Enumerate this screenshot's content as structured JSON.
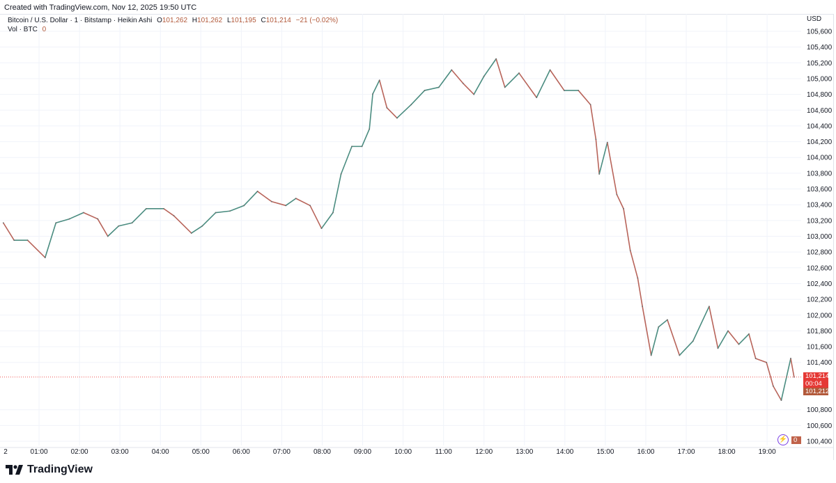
{
  "created": "Created with TradingView.com, Nov 12, 2025 19:50 UTC",
  "legend": {
    "symbol": "Bitcoin / U.S. Dollar · 1 · Bitstamp · Heikin Ashi",
    "open_label": "O",
    "open": "101,262",
    "high_label": "H",
    "high": "101,262",
    "low_label": "L",
    "low": "101,195",
    "close_label": "C",
    "close": "101,214",
    "change": "−21 (−0.02%)",
    "vol_label": "Vol · BTC",
    "vol": "0"
  },
  "price_tags": {
    "last": "101,214",
    "countdown": "00:04",
    "bid": "101,212",
    "volume": "0"
  },
  "logo": "TradingView",
  "colors": {
    "up": "#26a69a",
    "down": "#ef5350",
    "candle_up": "#4a8c80",
    "candle_down": "#b8645a",
    "last_tag": "#e53935",
    "bid_tag": "#b2593a",
    "grid": "#f0f3fa"
  },
  "chart_data": {
    "type": "line",
    "title": "",
    "currency": "USD",
    "y_ticks": [
      "105,600",
      "105,400",
      "105,200",
      "105,000",
      "104,800",
      "104,600",
      "104,400",
      "104,200",
      "104,000",
      "103,800",
      "103,600",
      "103,400",
      "103,200",
      "103,000",
      "102,800",
      "102,600",
      "102,400",
      "102,200",
      "102,000",
      "101,800",
      "101,600",
      "101,400",
      "100,800",
      "100,600",
      "100,400"
    ],
    "ylim": [
      100400,
      105600
    ],
    "x_ticks": [
      "2",
      "01:00",
      "02:00",
      "03:00",
      "04:00",
      "05:00",
      "06:00",
      "07:00",
      "08:00",
      "09:00",
      "10:00",
      "11:00",
      "12:00",
      "13:00",
      "14:00",
      "15:00",
      "16:00",
      "17:00",
      "18:00",
      "19:00"
    ],
    "grid": true,
    "series": [
      {
        "x": [
          "00:07",
          "00:23",
          "00:43",
          "01:09",
          "01:25",
          "01:45",
          "02:06",
          "02:27",
          "02:42",
          "02:58",
          "03:18",
          "03:39",
          "04:05",
          "04:20",
          "04:46",
          "05:02",
          "05:22",
          "05:43",
          "06:04",
          "06:24",
          "06:45",
          "07:06",
          "07:21",
          "07:42",
          "07:59",
          "08:16",
          "08:28",
          "08:44",
          "08:59",
          "09:10",
          "09:15",
          "09:25",
          "09:36",
          "09:51",
          "10:12",
          "10:32",
          "10:53",
          "11:12",
          "11:29",
          "11:45",
          "12:00",
          "12:18",
          "12:31",
          "12:52",
          "13:18",
          "13:38",
          "13:59",
          "14:20",
          "14:38",
          "14:46",
          "14:51",
          "15:03",
          "15:17",
          "15:27",
          "15:37",
          "15:48",
          "15:55",
          "16:08",
          "16:19",
          "16:32",
          "16:50",
          "17:10",
          "17:34",
          "17:47",
          "18:02",
          "18:18",
          "18:33",
          "18:43",
          "18:59",
          "19:09",
          "19:21",
          "19:35",
          "19:40"
        ],
        "y": [
          103170,
          102950,
          102950,
          102730,
          103170,
          103220,
          103300,
          103220,
          103000,
          103130,
          103170,
          103350,
          103350,
          103260,
          103040,
          103130,
          103300,
          103320,
          103390,
          103570,
          103440,
          103390,
          103480,
          103390,
          103100,
          103300,
          103790,
          104140,
          104140,
          104360,
          104805,
          104980,
          104630,
          104500,
          104670,
          104850,
          104890,
          105110,
          104940,
          104800,
          105030,
          105250,
          104890,
          105070,
          104760,
          105110,
          104850,
          104850,
          104670,
          104230,
          103790,
          104190,
          103530,
          103350,
          102820,
          102470,
          102110,
          101490,
          101850,
          101940,
          101490,
          101670,
          102110,
          101580,
          101800,
          101630,
          101760,
          101450,
          101400,
          101100,
          100920,
          101450,
          101214
        ]
      }
    ],
    "last_price": 101214
  }
}
